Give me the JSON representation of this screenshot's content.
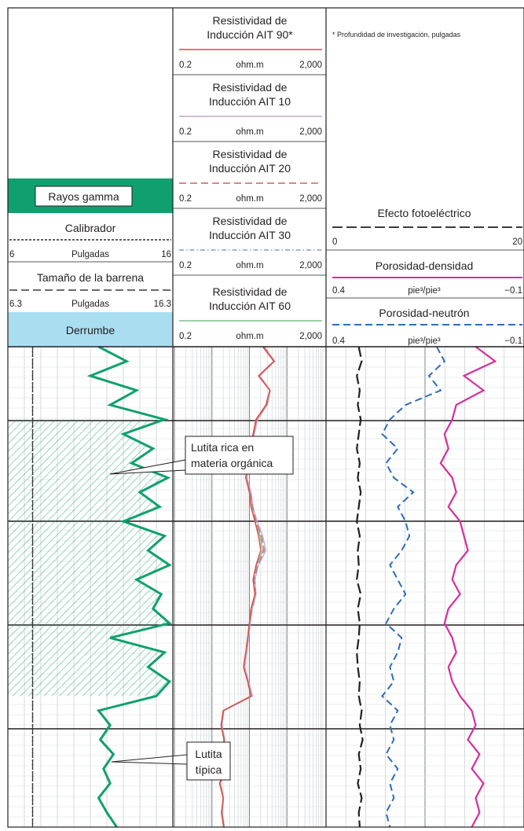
{
  "colors": {
    "gamma_green": "#10a070",
    "gamma_header_bg": "#10a070",
    "washout_blue": "#a9def0",
    "ait90": "#e8413c",
    "ait10": "#c9a2cf",
    "ait20": "#c5655f",
    "ait30": "#8a9ccb",
    "ait60": "#7cc08d",
    "pef": "#231f20",
    "density": "#d62e9d",
    "neutron": "#2e6db6",
    "caliper": "#2a2a2a",
    "bitsize": "#3a3a3a"
  },
  "track1": {
    "gamma": {
      "label": "Rayos gamma",
      "icon": "solid-green-line"
    },
    "caliper": {
      "label": "Calibrador",
      "min": "6",
      "unit": "Pulgadas",
      "max": "16",
      "icon": "short-dashed-line"
    },
    "bitsize": {
      "label": "Tamaño de la barrena",
      "min": "6.3",
      "unit": "Pulgadas",
      "max": "16.3",
      "icon": "long-dashed-line"
    },
    "washout": {
      "label": "Derrumbe",
      "icon": "light-blue-fill"
    }
  },
  "track2": {
    "curves": [
      {
        "title_line1": "Resistividad de",
        "title_line2": "Inducción AIT 90*",
        "min": "0.2",
        "unit": "ohm.m",
        "max": "2,000"
      },
      {
        "title_line1": "Resistividad de",
        "title_line2": "Inducción AIT 10",
        "min": "0.2",
        "unit": "ohm.m",
        "max": "2,000"
      },
      {
        "title_line1": "Resistividad de",
        "title_line2": "Inducción AIT 20",
        "min": "0.2",
        "unit": "ohm.m",
        "max": "2,000"
      },
      {
        "title_line1": "Resistividad de",
        "title_line2": "Inducción AIT 30",
        "min": "0.2",
        "unit": "ohm.m",
        "max": "2,000"
      },
      {
        "title_line1": "Resistividad de",
        "title_line2": "Inducción AIT 60",
        "min": "0.2",
        "unit": "ohm.m",
        "max": "2,000"
      }
    ]
  },
  "track3": {
    "note": "* Profundidad de investigación, pulgadas",
    "pef": {
      "label": "Efecto fotoeléctrico",
      "min": "0",
      "max": "20"
    },
    "density": {
      "label": "Porosidad-densidad",
      "min": "0.4",
      "unit": "pie³/pie³",
      "max": "−0.1"
    },
    "neutron": {
      "label": "Porosidad-neutrón",
      "min": "0.4",
      "unit": "pie³/pie³",
      "max": "−0.1"
    }
  },
  "annotations": {
    "organic_shale": {
      "line1": "Lutita rica en",
      "line2": "materia orgánica"
    },
    "typical_shale": {
      "line1": "Lutita",
      "line2": "típica"
    }
  },
  "chart_data": {
    "type": "line",
    "depth_axis": "unlabeled, increasing downward",
    "zones": [
      "Lutita rica en materia orgánica",
      "Lutita típica"
    ],
    "series": [
      {
        "name": "Rayos gamma",
        "track": 1,
        "scale": "unlabeled",
        "values": [
          0.55,
          0.72,
          0.5,
          0.78,
          0.62,
          0.95,
          0.7,
          0.88,
          0.75,
          0.97,
          0.8,
          0.92,
          0.7,
          0.95,
          0.85,
          0.98,
          0.78,
          0.93,
          0.88,
          0.98,
          0.62,
          0.95,
          0.85,
          0.98,
          0.9,
          0.55,
          0.62,
          0.56,
          0.64,
          0.58,
          0.62,
          0.55,
          0.6,
          0.66
        ]
      },
      {
        "name": "Calibrador",
        "track": 1,
        "scale": [
          6,
          16
        ],
        "unit": "Pulgadas",
        "values": [
          7.5,
          7.5,
          7.5,
          7.5,
          7.5,
          7.5,
          7.5,
          7.5,
          7.5,
          7.5,
          7.5,
          7.5,
          7.5,
          7.5,
          7.5,
          7.5,
          7.5,
          7.5,
          7.5,
          7.5,
          7.5,
          7.5,
          7.5,
          7.5,
          7.5,
          7.5,
          7.5,
          7.5,
          7.5,
          7.5,
          7.5,
          7.5,
          7.5,
          7.5
        ]
      },
      {
        "name": "Tamaño de la barrena",
        "track": 1,
        "scale": [
          6.3,
          16.3
        ],
        "unit": "Pulgadas",
        "values": [
          7.8,
          7.8,
          7.8,
          7.8,
          7.8,
          7.8,
          7.8,
          7.8,
          7.8,
          7.8,
          7.8,
          7.8,
          7.8,
          7.8,
          7.8,
          7.8,
          7.8,
          7.8,
          7.8,
          7.8,
          7.8,
          7.8,
          7.8,
          7.8,
          7.8,
          7.8,
          7.8,
          7.8,
          7.8,
          7.8,
          7.8,
          7.8,
          7.8,
          7.8
        ]
      },
      {
        "name": "Resistividad de Inducción AIT 90",
        "track": 2,
        "scale": [
          0.2,
          2000
        ],
        "log": true,
        "unit": "ohm.m",
        "values": [
          45,
          90,
          35,
          70,
          55,
          30,
          25,
          20,
          18,
          16,
          20,
          22,
          28,
          35,
          40,
          30,
          25,
          28,
          22,
          20,
          18,
          16,
          14,
          18,
          22,
          4,
          3.5,
          4.2,
          3.8,
          4.5,
          3.2,
          4.0,
          3.6,
          4.1
        ]
      },
      {
        "name": "Resistividad de Inducción AIT 10",
        "track": 2,
        "scale": [
          0.2,
          2000
        ],
        "log": true,
        "unit": "ohm.m",
        "values": [
          50,
          95,
          38,
          72,
          60,
          33,
          27,
          22,
          19,
          17,
          22,
          25,
          32,
          45,
          55,
          35,
          28,
          30,
          24,
          21,
          19,
          17,
          15,
          19,
          24,
          4.2,
          3.7,
          4.4,
          4.0,
          4.6,
          3.4,
          4.1,
          3.8,
          4.3
        ]
      },
      {
        "name": "Resistividad de Inducción AIT 20",
        "track": 2,
        "scale": [
          0.2,
          2000
        ],
        "log": true,
        "unit": "ohm.m",
        "values": [
          48,
          92,
          36,
          71,
          58,
          31,
          26,
          21,
          18,
          16,
          21,
          24,
          30,
          42,
          50,
          33,
          27,
          29,
          23,
          20,
          18,
          16,
          14,
          18,
          23,
          4.1,
          3.6,
          4.3,
          3.9,
          4.5,
          3.3,
          4.0,
          3.7,
          4.2
        ]
      },
      {
        "name": "Resistividad de Inducción AIT 30",
        "track": 2,
        "scale": [
          0.2,
          2000
        ],
        "log": true,
        "unit": "ohm.m",
        "values": [
          47,
          91,
          36,
          70,
          57,
          31,
          26,
          21,
          18,
          16,
          21,
          23,
          29,
          40,
          48,
          32,
          26,
          29,
          23,
          20,
          18,
          16,
          14,
          18,
          23,
          4.1,
          3.6,
          4.3,
          3.9,
          4.5,
          3.3,
          4.0,
          3.7,
          4.2
        ]
      },
      {
        "name": "Resistividad de Inducción AIT 60",
        "track": 2,
        "scale": [
          0.2,
          2000
        ],
        "log": true,
        "unit": "ohm.m",
        "values": [
          46,
          90,
          35,
          70,
          56,
          30,
          25,
          20,
          18,
          16,
          20,
          23,
          28,
          38,
          45,
          31,
          25,
          28,
          22,
          20,
          18,
          16,
          14,
          18,
          22,
          4.0,
          3.5,
          4.2,
          3.8,
          4.5,
          3.2,
          4.0,
          3.6,
          4.1
        ]
      },
      {
        "name": "Efecto fotoeléctrico",
        "track": 3,
        "scale": [
          0,
          20
        ],
        "values": [
          3.2,
          3.5,
          3.0,
          3.3,
          3.1,
          3.4,
          3.2,
          3.0,
          3.3,
          3.1,
          3.4,
          3.2,
          3.0,
          3.3,
          3.1,
          3.2,
          3.0,
          3.4,
          3.1,
          3.3,
          3.2,
          3.0,
          3.1,
          3.3,
          3.2,
          3.5,
          3.3,
          3.6,
          3.2,
          3.4,
          3.1,
          3.5,
          3.2,
          3.3
        ]
      },
      {
        "name": "Porosidad-densidad",
        "track": 3,
        "scale": [
          0.4,
          -0.1
        ],
        "unit": "pie³/pie³",
        "values": [
          0.02,
          -0.03,
          0.05,
          0.0,
          0.07,
          0.08,
          0.1,
          0.09,
          0.11,
          0.08,
          0.07,
          0.09,
          0.06,
          0.05,
          0.04,
          0.07,
          0.08,
          0.06,
          0.09,
          0.1,
          0.08,
          0.07,
          0.09,
          0.08,
          0.06,
          0.03,
          0.02,
          0.04,
          0.01,
          0.03,
          0.0,
          0.02,
          0.01,
          0.03
        ]
      },
      {
        "name": "Porosidad-neutrón",
        "track": 3,
        "scale": [
          0.4,
          -0.1
        ],
        "unit": "pie³/pie³",
        "values": [
          0.12,
          0.1,
          0.14,
          0.11,
          0.2,
          0.24,
          0.26,
          0.22,
          0.25,
          0.23,
          0.18,
          0.22,
          0.2,
          0.19,
          0.21,
          0.24,
          0.22,
          0.2,
          0.23,
          0.25,
          0.21,
          0.22,
          0.24,
          0.23,
          0.26,
          0.22,
          0.24,
          0.23,
          0.25,
          0.22,
          0.24,
          0.23,
          0.25,
          0.24
        ]
      }
    ]
  }
}
